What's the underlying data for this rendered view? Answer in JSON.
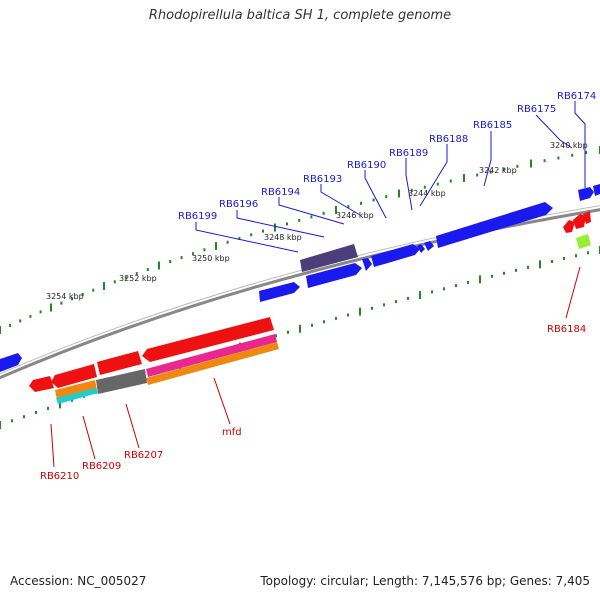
{
  "title": "Rhodopirellula baltica SH 1, complete genome",
  "footer": {
    "accession": "Accession: NC_005027",
    "stats": "Topology: circular; Length: 7,145,576 bp; Genes: 7,405"
  },
  "colors": {
    "forward_gene": "#1a1aee",
    "reverse_gene": "#ee1111",
    "forward_label": "#1a1acc",
    "reverse_label": "#cc0000",
    "backbone": "#888888",
    "tick_ring": "#228822",
    "purple_feature": "#4a3f7a",
    "pink_feature": "#e8288c",
    "orange_feature": "#ee8811",
    "gray_feature": "#666666",
    "cyan_feature": "#22cccc",
    "lime_feature": "#99ee33"
  },
  "tick_labels": [
    "3240 kbp",
    "3242 kbp",
    "3244 kbp",
    "3246 kbp",
    "3248 kbp",
    "3250 kbp",
    "3252 kbp",
    "3254 kbp"
  ],
  "forward_genes": [
    "RB6174",
    "RB6175",
    "RB6185",
    "RB6188",
    "RB6189",
    "RB6190",
    "RB6193",
    "RB6194",
    "RB6196",
    "RB6199"
  ],
  "reverse_genes": [
    "RB6184",
    "mfd",
    "RB6207",
    "RB6209",
    "RB6210"
  ]
}
